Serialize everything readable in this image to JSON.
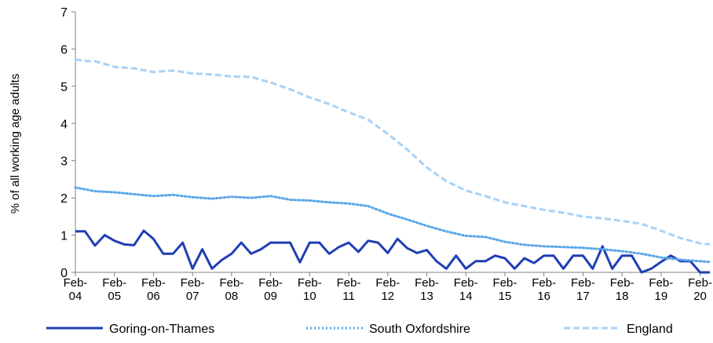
{
  "chart_data": {
    "type": "line",
    "title": "",
    "xlabel": "",
    "ylabel": "% of all working age adults",
    "ylim": [
      0,
      7
    ],
    "yticks": [
      0,
      1,
      2,
      3,
      4,
      5,
      6,
      7
    ],
    "xlim": [
      0,
      16.25
    ],
    "xticks": [
      {
        "x": 0,
        "line1": "Feb-",
        "line2": "04"
      },
      {
        "x": 1,
        "line1": "Feb-",
        "line2": "05"
      },
      {
        "x": 2,
        "line1": "Feb-",
        "line2": "06"
      },
      {
        "x": 3,
        "line1": "Feb-",
        "line2": "07"
      },
      {
        "x": 4,
        "line1": "Feb-",
        "line2": "08"
      },
      {
        "x": 5,
        "line1": "Feb-",
        "line2": "09"
      },
      {
        "x": 6,
        "line1": "Feb-",
        "line2": "10"
      },
      {
        "x": 7,
        "line1": "Feb-",
        "line2": "11"
      },
      {
        "x": 8,
        "line1": "Feb-",
        "line2": "12"
      },
      {
        "x": 9,
        "line1": "Feb-",
        "line2": "13"
      },
      {
        "x": 10,
        "line1": "Feb-",
        "line2": "14"
      },
      {
        "x": 11,
        "line1": "Feb-",
        "line2": "15"
      },
      {
        "x": 12,
        "line1": "Feb-",
        "line2": "16"
      },
      {
        "x": 13,
        "line1": "Feb-",
        "line2": "17"
      },
      {
        "x": 14,
        "line1": "Feb-",
        "line2": "18"
      },
      {
        "x": 15,
        "line1": "Feb-",
        "line2": "19"
      },
      {
        "x": 16,
        "line1": "Feb-",
        "line2": "20"
      }
    ],
    "grid": false,
    "legend_position": "bottom",
    "series": [
      {
        "name": "Goring-on-Thames",
        "color": "#1f3fb4",
        "style": "solid",
        "points": [
          [
            0,
            1.1
          ],
          [
            0.25,
            1.1
          ],
          [
            0.5,
            0.72
          ],
          [
            0.75,
            1.0
          ],
          [
            1.0,
            0.85
          ],
          [
            1.25,
            0.75
          ],
          [
            1.5,
            0.73
          ],
          [
            1.75,
            1.12
          ],
          [
            2.0,
            0.9
          ],
          [
            2.25,
            0.5
          ],
          [
            2.5,
            0.5
          ],
          [
            2.75,
            0.8
          ],
          [
            3.0,
            0.1
          ],
          [
            3.25,
            0.62
          ],
          [
            3.5,
            0.1
          ],
          [
            3.75,
            0.33
          ],
          [
            4.0,
            0.5
          ],
          [
            4.25,
            0.8
          ],
          [
            4.5,
            0.5
          ],
          [
            4.75,
            0.62
          ],
          [
            5.0,
            0.8
          ],
          [
            5.25,
            0.8
          ],
          [
            5.5,
            0.8
          ],
          [
            5.75,
            0.27
          ],
          [
            6.0,
            0.8
          ],
          [
            6.25,
            0.8
          ],
          [
            6.5,
            0.5
          ],
          [
            6.75,
            0.68
          ],
          [
            7.0,
            0.8
          ],
          [
            7.25,
            0.55
          ],
          [
            7.5,
            0.85
          ],
          [
            7.75,
            0.8
          ],
          [
            8.0,
            0.52
          ],
          [
            8.25,
            0.9
          ],
          [
            8.5,
            0.65
          ],
          [
            8.75,
            0.52
          ],
          [
            9.0,
            0.6
          ],
          [
            9.25,
            0.3
          ],
          [
            9.5,
            0.1
          ],
          [
            9.75,
            0.45
          ],
          [
            10.0,
            0.1
          ],
          [
            10.25,
            0.3
          ],
          [
            10.5,
            0.3
          ],
          [
            10.75,
            0.45
          ],
          [
            11.0,
            0.38
          ],
          [
            11.25,
            0.1
          ],
          [
            11.5,
            0.38
          ],
          [
            11.75,
            0.25
          ],
          [
            12.0,
            0.45
          ],
          [
            12.25,
            0.45
          ],
          [
            12.5,
            0.1
          ],
          [
            12.75,
            0.45
          ],
          [
            13.0,
            0.45
          ],
          [
            13.25,
            0.1
          ],
          [
            13.5,
            0.7
          ],
          [
            13.75,
            0.1
          ],
          [
            14.0,
            0.45
          ],
          [
            14.25,
            0.45
          ],
          [
            14.5,
            0.0
          ],
          [
            14.75,
            0.1
          ],
          [
            15.0,
            0.28
          ],
          [
            15.25,
            0.45
          ],
          [
            15.5,
            0.3
          ],
          [
            15.75,
            0.3
          ],
          [
            16.0,
            0.0
          ],
          [
            16.25,
            0.0
          ]
        ]
      },
      {
        "name": "South Oxfordshire",
        "color": "#5aa6e8",
        "style": "dotted",
        "points": [
          [
            0,
            2.28
          ],
          [
            0.5,
            2.18
          ],
          [
            1.0,
            2.15
          ],
          [
            1.5,
            2.1
          ],
          [
            2.0,
            2.05
          ],
          [
            2.5,
            2.08
          ],
          [
            3.0,
            2.02
          ],
          [
            3.5,
            1.98
          ],
          [
            4.0,
            2.03
          ],
          [
            4.5,
            2.0
          ],
          [
            5.0,
            2.05
          ],
          [
            5.5,
            1.95
          ],
          [
            6.0,
            1.93
          ],
          [
            6.5,
            1.88
          ],
          [
            7.0,
            1.85
          ],
          [
            7.5,
            1.78
          ],
          [
            8.0,
            1.58
          ],
          [
            8.5,
            1.42
          ],
          [
            9.0,
            1.25
          ],
          [
            9.5,
            1.1
          ],
          [
            10.0,
            0.98
          ],
          [
            10.5,
            0.95
          ],
          [
            11.0,
            0.82
          ],
          [
            11.5,
            0.74
          ],
          [
            12.0,
            0.7
          ],
          [
            12.5,
            0.68
          ],
          [
            13.0,
            0.66
          ],
          [
            13.5,
            0.62
          ],
          [
            14.0,
            0.57
          ],
          [
            14.5,
            0.5
          ],
          [
            15.0,
            0.4
          ],
          [
            15.5,
            0.34
          ],
          [
            16.0,
            0.3
          ],
          [
            16.25,
            0.28
          ]
        ]
      },
      {
        "name": "England",
        "color": "#a8d2f7",
        "style": "dashed",
        "points": [
          [
            0,
            5.72
          ],
          [
            0.25,
            5.68
          ],
          [
            0.5,
            5.67
          ],
          [
            0.75,
            5.6
          ],
          [
            1.0,
            5.52
          ],
          [
            1.5,
            5.48
          ],
          [
            2.0,
            5.38
          ],
          [
            2.5,
            5.42
          ],
          [
            3.0,
            5.34
          ],
          [
            3.5,
            5.32
          ],
          [
            4.0,
            5.26
          ],
          [
            4.5,
            5.25
          ],
          [
            5.0,
            5.1
          ],
          [
            5.5,
            4.92
          ],
          [
            6.0,
            4.7
          ],
          [
            6.5,
            4.52
          ],
          [
            7.0,
            4.3
          ],
          [
            7.5,
            4.1
          ],
          [
            8.0,
            3.72
          ],
          [
            8.5,
            3.3
          ],
          [
            9.0,
            2.82
          ],
          [
            9.5,
            2.45
          ],
          [
            10.0,
            2.2
          ],
          [
            10.5,
            2.05
          ],
          [
            11.0,
            1.88
          ],
          [
            11.5,
            1.78
          ],
          [
            12.0,
            1.68
          ],
          [
            12.5,
            1.6
          ],
          [
            13.0,
            1.5
          ],
          [
            13.5,
            1.45
          ],
          [
            14.0,
            1.38
          ],
          [
            14.5,
            1.3
          ],
          [
            15.0,
            1.12
          ],
          [
            15.5,
            0.92
          ],
          [
            16.0,
            0.78
          ],
          [
            16.25,
            0.75
          ]
        ]
      }
    ]
  }
}
